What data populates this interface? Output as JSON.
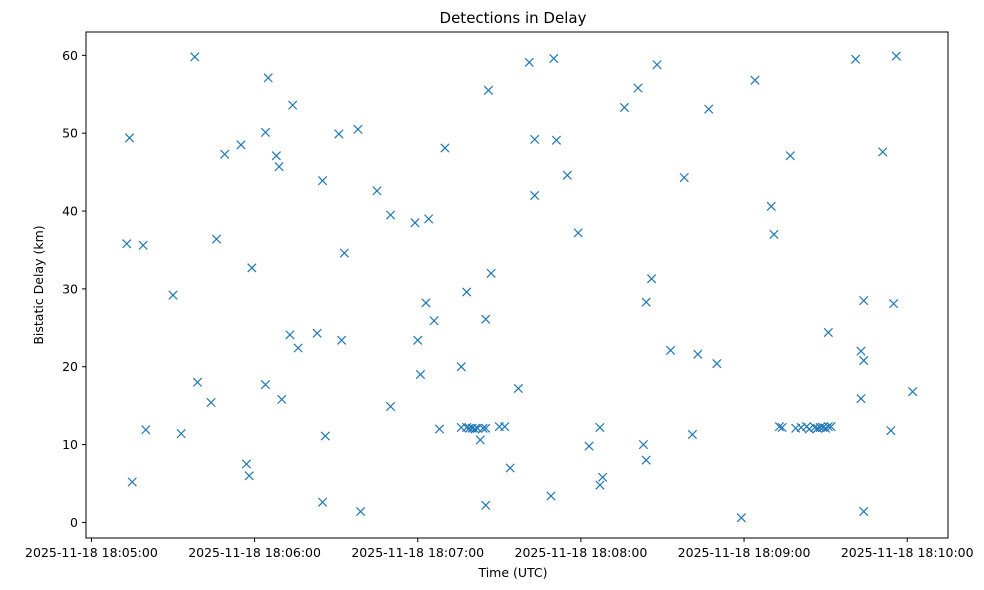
{
  "chart_data": {
    "type": "scatter",
    "title": "Detections in Delay",
    "xlabel": "Time (UTC)",
    "ylabel": "Bistatic Delay (km)",
    "marker": "x",
    "color": "#1f77b4",
    "grid": false,
    "xlim": [
      "2025-11-18 18:04:58",
      "2025-11-18 18:10:15"
    ],
    "ylim": [
      -2,
      63
    ],
    "x_ticks": [
      "2025-11-18 18:05:00",
      "2025-11-18 18:06:00",
      "2025-11-18 18:07:00",
      "2025-11-18 18:08:00",
      "2025-11-18 18:09:00",
      "2025-11-18 18:10:00"
    ],
    "y_ticks": [
      0,
      10,
      20,
      30,
      40,
      50,
      60
    ],
    "series": [
      {
        "points": [
          [
            "2025-11-18 18:05:13",
            35.8
          ],
          [
            "2025-11-18 18:05:14",
            49.4
          ],
          [
            "2025-11-18 18:05:15",
            5.2
          ],
          [
            "2025-11-18 18:05:19",
            35.6
          ],
          [
            "2025-11-18 18:05:20",
            11.9
          ],
          [
            "2025-11-18 18:05:30",
            29.2
          ],
          [
            "2025-11-18 18:05:33",
            11.4
          ],
          [
            "2025-11-18 18:05:38",
            59.8
          ],
          [
            "2025-11-18 18:05:39",
            18.0
          ],
          [
            "2025-11-18 18:05:44",
            15.4
          ],
          [
            "2025-11-18 18:05:46",
            36.4
          ],
          [
            "2025-11-18 18:05:49",
            47.3
          ],
          [
            "2025-11-18 18:05:55",
            48.5
          ],
          [
            "2025-11-18 18:05:57",
            7.5
          ],
          [
            "2025-11-18 18:05:58",
            6.0
          ],
          [
            "2025-11-18 18:05:59",
            32.7
          ],
          [
            "2025-11-18 18:06:04",
            17.7
          ],
          [
            "2025-11-18 18:06:04",
            50.1
          ],
          [
            "2025-11-18 18:06:05",
            57.1
          ],
          [
            "2025-11-18 18:06:08",
            47.1
          ],
          [
            "2025-11-18 18:06:09",
            45.7
          ],
          [
            "2025-11-18 18:06:10",
            15.8
          ],
          [
            "2025-11-18 18:06:13",
            24.1
          ],
          [
            "2025-11-18 18:06:14",
            53.6
          ],
          [
            "2025-11-18 18:06:16",
            22.4
          ],
          [
            "2025-11-18 18:06:23",
            24.3
          ],
          [
            "2025-11-18 18:06:25",
            43.9
          ],
          [
            "2025-11-18 18:06:25",
            2.6
          ],
          [
            "2025-11-18 18:06:26",
            11.1
          ],
          [
            "2025-11-18 18:06:31",
            49.9
          ],
          [
            "2025-11-18 18:06:32",
            23.4
          ],
          [
            "2025-11-18 18:06:33",
            34.6
          ],
          [
            "2025-11-18 18:06:38",
            50.5
          ],
          [
            "2025-11-18 18:06:39",
            1.4
          ],
          [
            "2025-11-18 18:06:45",
            42.6
          ],
          [
            "2025-11-18 18:06:50",
            39.5
          ],
          [
            "2025-11-18 18:06:50",
            14.9
          ],
          [
            "2025-11-18 18:06:59",
            38.5
          ],
          [
            "2025-11-18 18:07:00",
            23.4
          ],
          [
            "2025-11-18 18:07:01",
            19.0
          ],
          [
            "2025-11-18 18:07:03",
            28.2
          ],
          [
            "2025-11-18 18:07:04",
            39.0
          ],
          [
            "2025-11-18 18:07:06",
            25.9
          ],
          [
            "2025-11-18 18:07:08",
            12.0
          ],
          [
            "2025-11-18 18:07:10",
            48.1
          ],
          [
            "2025-11-18 18:07:16",
            20.0
          ],
          [
            "2025-11-18 18:07:16",
            12.2
          ],
          [
            "2025-11-18 18:07:18",
            29.6
          ],
          [
            "2025-11-18 18:07:18",
            12.2
          ],
          [
            "2025-11-18 18:07:19",
            12.1
          ],
          [
            "2025-11-18 18:07:20",
            12.1
          ],
          [
            "2025-11-18 18:07:21",
            12.0
          ],
          [
            "2025-11-18 18:07:22",
            12.1
          ],
          [
            "2025-11-18 18:07:23",
            10.6
          ],
          [
            "2025-11-18 18:07:24",
            12.1
          ],
          [
            "2025-11-18 18:07:25",
            26.1
          ],
          [
            "2025-11-18 18:07:25",
            2.2
          ],
          [
            "2025-11-18 18:07:25",
            12.1
          ],
          [
            "2025-11-18 18:07:26",
            55.5
          ],
          [
            "2025-11-18 18:07:27",
            32.0
          ],
          [
            "2025-11-18 18:07:30",
            12.3
          ],
          [
            "2025-11-18 18:07:32",
            12.3
          ],
          [
            "2025-11-18 18:07:34",
            7.0
          ],
          [
            "2025-11-18 18:07:37",
            17.2
          ],
          [
            "2025-11-18 18:07:41",
            59.1
          ],
          [
            "2025-11-18 18:07:43",
            49.2
          ],
          [
            "2025-11-18 18:07:43",
            42.0
          ],
          [
            "2025-11-18 18:07:49",
            3.4
          ],
          [
            "2025-11-18 18:07:50",
            59.6
          ],
          [
            "2025-11-18 18:07:51",
            49.1
          ],
          [
            "2025-11-18 18:07:55",
            44.6
          ],
          [
            "2025-11-18 18:07:59",
            37.2
          ],
          [
            "2025-11-18 18:08:03",
            9.8
          ],
          [
            "2025-11-18 18:08:07",
            4.8
          ],
          [
            "2025-11-18 18:08:07",
            12.2
          ],
          [
            "2025-11-18 18:08:08",
            5.8
          ],
          [
            "2025-11-18 18:08:16",
            53.3
          ],
          [
            "2025-11-18 18:08:21",
            55.8
          ],
          [
            "2025-11-18 18:08:23",
            10.0
          ],
          [
            "2025-11-18 18:08:24",
            28.3
          ],
          [
            "2025-11-18 18:08:24",
            8.0
          ],
          [
            "2025-11-18 18:08:26",
            31.3
          ],
          [
            "2025-11-18 18:08:28",
            58.8
          ],
          [
            "2025-11-18 18:08:33",
            22.1
          ],
          [
            "2025-11-18 18:08:38",
            44.3
          ],
          [
            "2025-11-18 18:08:41",
            11.3
          ],
          [
            "2025-11-18 18:08:43",
            21.6
          ],
          [
            "2025-11-18 18:08:47",
            53.1
          ],
          [
            "2025-11-18 18:08:50",
            20.4
          ],
          [
            "2025-11-18 18:08:59",
            0.6
          ],
          [
            "2025-11-18 18:09:04",
            56.8
          ],
          [
            "2025-11-18 18:09:10",
            40.6
          ],
          [
            "2025-11-18 18:09:11",
            37.0
          ],
          [
            "2025-11-18 18:09:13",
            12.3
          ],
          [
            "2025-11-18 18:09:14",
            12.2
          ],
          [
            "2025-11-18 18:09:17",
            47.1
          ],
          [
            "2025-11-18 18:09:19",
            12.1
          ],
          [
            "2025-11-18 18:09:21",
            12.2
          ],
          [
            "2025-11-18 18:09:23",
            12.3
          ],
          [
            "2025-11-18 18:09:24",
            12.0
          ],
          [
            "2025-11-18 18:09:26",
            12.2
          ],
          [
            "2025-11-18 18:09:27",
            12.1
          ],
          [
            "2025-11-18 18:09:28",
            12.2
          ],
          [
            "2025-11-18 18:09:29",
            12.2
          ],
          [
            "2025-11-18 18:09:30",
            12.1
          ],
          [
            "2025-11-18 18:09:31",
            24.4
          ],
          [
            "2025-11-18 18:09:31",
            12.3
          ],
          [
            "2025-11-18 18:09:32",
            12.3
          ],
          [
            "2025-11-18 18:09:41",
            59.5
          ],
          [
            "2025-11-18 18:09:43",
            15.9
          ],
          [
            "2025-11-18 18:09:43",
            22.0
          ],
          [
            "2025-11-18 18:09:44",
            20.8
          ],
          [
            "2025-11-18 18:09:44",
            28.5
          ],
          [
            "2025-11-18 18:09:44",
            1.4
          ],
          [
            "2025-11-18 18:09:51",
            47.6
          ],
          [
            "2025-11-18 18:09:54",
            11.8
          ],
          [
            "2025-11-18 18:09:55",
            28.1
          ],
          [
            "2025-11-18 18:09:56",
            59.9
          ],
          [
            "2025-11-18 18:10:02",
            16.8
          ]
        ]
      }
    ]
  }
}
